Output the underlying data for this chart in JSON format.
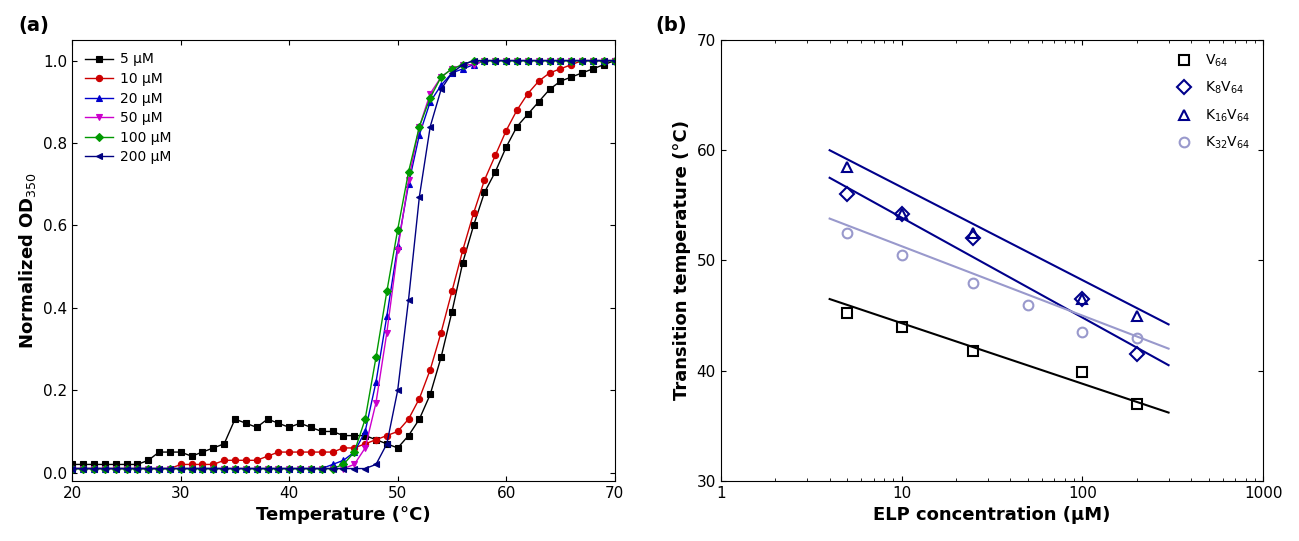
{
  "panel_a": {
    "xlabel": "Temperature (°C)",
    "ylabel": "Normalized OD$_{350}$",
    "xlim": [
      20,
      70
    ],
    "ylim": [
      -0.02,
      1.05
    ],
    "series": [
      {
        "label": "5 μM",
        "color": "black",
        "marker": "s",
        "x": [
          20,
          21,
          22,
          23,
          24,
          25,
          26,
          27,
          28,
          29,
          30,
          31,
          32,
          33,
          34,
          35,
          36,
          37,
          38,
          39,
          40,
          41,
          42,
          43,
          44,
          45,
          46,
          47,
          48,
          49,
          50,
          51,
          52,
          53,
          54,
          55,
          56,
          57,
          58,
          59,
          60,
          61,
          62,
          63,
          64,
          65,
          66,
          67,
          68,
          69,
          70
        ],
        "y": [
          0.02,
          0.02,
          0.02,
          0.02,
          0.02,
          0.02,
          0.02,
          0.03,
          0.05,
          0.05,
          0.05,
          0.04,
          0.05,
          0.06,
          0.07,
          0.13,
          0.12,
          0.11,
          0.13,
          0.12,
          0.11,
          0.12,
          0.11,
          0.1,
          0.1,
          0.09,
          0.09,
          0.09,
          0.08,
          0.07,
          0.06,
          0.09,
          0.13,
          0.19,
          0.28,
          0.39,
          0.51,
          0.6,
          0.68,
          0.73,
          0.79,
          0.84,
          0.87,
          0.9,
          0.93,
          0.95,
          0.96,
          0.97,
          0.98,
          0.99,
          1.0
        ]
      },
      {
        "label": "10 μM",
        "color": "#cc0000",
        "marker": "o",
        "x": [
          20,
          21,
          22,
          23,
          24,
          25,
          26,
          27,
          28,
          29,
          30,
          31,
          32,
          33,
          34,
          35,
          36,
          37,
          38,
          39,
          40,
          41,
          42,
          43,
          44,
          45,
          46,
          47,
          48,
          49,
          50,
          51,
          52,
          53,
          54,
          55,
          56,
          57,
          58,
          59,
          60,
          61,
          62,
          63,
          64,
          65,
          66,
          67,
          68,
          69,
          70
        ],
        "y": [
          0.01,
          0.01,
          0.01,
          0.01,
          0.01,
          0.01,
          0.01,
          0.01,
          0.01,
          0.01,
          0.02,
          0.02,
          0.02,
          0.02,
          0.03,
          0.03,
          0.03,
          0.03,
          0.04,
          0.05,
          0.05,
          0.05,
          0.05,
          0.05,
          0.05,
          0.06,
          0.06,
          0.07,
          0.08,
          0.09,
          0.1,
          0.13,
          0.18,
          0.25,
          0.34,
          0.44,
          0.54,
          0.63,
          0.71,
          0.77,
          0.83,
          0.88,
          0.92,
          0.95,
          0.97,
          0.98,
          0.99,
          1.0,
          1.0,
          1.0,
          1.0
        ]
      },
      {
        "label": "20 μM",
        "color": "#0000cc",
        "marker": "^",
        "x": [
          20,
          21,
          22,
          23,
          24,
          25,
          26,
          27,
          28,
          29,
          30,
          31,
          32,
          33,
          34,
          35,
          36,
          37,
          38,
          39,
          40,
          41,
          42,
          43,
          44,
          45,
          46,
          47,
          48,
          49,
          50,
          51,
          52,
          53,
          54,
          55,
          56,
          57,
          58,
          59,
          60,
          61,
          62,
          63,
          64,
          65,
          66,
          67,
          68,
          69,
          70
        ],
        "y": [
          0.01,
          0.01,
          0.01,
          0.01,
          0.01,
          0.01,
          0.01,
          0.01,
          0.01,
          0.01,
          0.01,
          0.01,
          0.01,
          0.01,
          0.01,
          0.01,
          0.01,
          0.01,
          0.01,
          0.01,
          0.01,
          0.01,
          0.01,
          0.01,
          0.02,
          0.03,
          0.05,
          0.1,
          0.22,
          0.38,
          0.55,
          0.7,
          0.82,
          0.9,
          0.94,
          0.97,
          0.98,
          0.99,
          1.0,
          1.0,
          1.0,
          1.0,
          1.0,
          1.0,
          1.0,
          1.0,
          1.0,
          1.0,
          1.0,
          1.0,
          1.0
        ]
      },
      {
        "label": "50 μM",
        "color": "#cc00cc",
        "marker": "v",
        "x": [
          20,
          21,
          22,
          23,
          24,
          25,
          26,
          27,
          28,
          29,
          30,
          31,
          32,
          33,
          34,
          35,
          36,
          37,
          38,
          39,
          40,
          41,
          42,
          43,
          44,
          45,
          46,
          47,
          48,
          49,
          50,
          51,
          52,
          53,
          54,
          55,
          56,
          57,
          58,
          59,
          60,
          61,
          62,
          63,
          64,
          65,
          66,
          67,
          68,
          69,
          70
        ],
        "y": [
          0.01,
          0.01,
          0.01,
          0.01,
          0.01,
          0.01,
          0.01,
          0.01,
          0.01,
          0.01,
          0.01,
          0.01,
          0.01,
          0.01,
          0.01,
          0.01,
          0.01,
          0.01,
          0.01,
          0.01,
          0.01,
          0.01,
          0.01,
          0.01,
          0.01,
          0.01,
          0.02,
          0.06,
          0.17,
          0.34,
          0.54,
          0.71,
          0.84,
          0.92,
          0.96,
          0.98,
          0.99,
          0.99,
          1.0,
          1.0,
          1.0,
          1.0,
          1.0,
          1.0,
          1.0,
          1.0,
          1.0,
          1.0,
          1.0,
          1.0,
          1.0
        ]
      },
      {
        "label": "100 μM",
        "color": "#009900",
        "marker": "D",
        "x": [
          20,
          21,
          22,
          23,
          24,
          25,
          26,
          27,
          28,
          29,
          30,
          31,
          32,
          33,
          34,
          35,
          36,
          37,
          38,
          39,
          40,
          41,
          42,
          43,
          44,
          45,
          46,
          47,
          48,
          49,
          50,
          51,
          52,
          53,
          54,
          55,
          56,
          57,
          58,
          59,
          60,
          61,
          62,
          63,
          64,
          65,
          66,
          67,
          68,
          69,
          70
        ],
        "y": [
          0.01,
          0.01,
          0.01,
          0.01,
          0.01,
          0.01,
          0.01,
          0.01,
          0.01,
          0.01,
          0.01,
          0.01,
          0.01,
          0.01,
          0.01,
          0.01,
          0.01,
          0.01,
          0.01,
          0.01,
          0.01,
          0.01,
          0.01,
          0.01,
          0.01,
          0.02,
          0.05,
          0.13,
          0.28,
          0.44,
          0.59,
          0.73,
          0.84,
          0.91,
          0.96,
          0.98,
          0.99,
          1.0,
          1.0,
          1.0,
          1.0,
          1.0,
          1.0,
          1.0,
          1.0,
          1.0,
          1.0,
          1.0,
          1.0,
          1.0,
          1.0
        ]
      },
      {
        "label": "200 μM",
        "color": "#000080",
        "marker": "<",
        "x": [
          20,
          21,
          22,
          23,
          24,
          25,
          26,
          27,
          28,
          29,
          30,
          31,
          32,
          33,
          34,
          35,
          36,
          37,
          38,
          39,
          40,
          41,
          42,
          43,
          44,
          45,
          46,
          47,
          48,
          49,
          50,
          51,
          52,
          53,
          54,
          55,
          56,
          57,
          58,
          59,
          60,
          61,
          62,
          63,
          64,
          65,
          66,
          67,
          68,
          69,
          70
        ],
        "y": [
          0.01,
          0.01,
          0.01,
          0.01,
          0.01,
          0.01,
          0.01,
          0.01,
          0.01,
          0.01,
          0.01,
          0.01,
          0.01,
          0.01,
          0.01,
          0.01,
          0.01,
          0.01,
          0.01,
          0.01,
          0.01,
          0.01,
          0.01,
          0.01,
          0.01,
          0.01,
          0.01,
          0.01,
          0.02,
          0.07,
          0.2,
          0.42,
          0.67,
          0.84,
          0.93,
          0.97,
          0.99,
          1.0,
          1.0,
          1.0,
          1.0,
          1.0,
          1.0,
          1.0,
          1.0,
          1.0,
          1.0,
          1.0,
          1.0,
          1.0,
          1.0
        ]
      }
    ]
  },
  "panel_b": {
    "xlabel": "ELP concentration (μM)",
    "ylabel": "Transition temperature (°C)",
    "xlim": [
      3,
      1000
    ],
    "ylim": [
      30,
      70
    ],
    "series": [
      {
        "label": "V$_{64}$",
        "color": "black",
        "marker": "s",
        "x": [
          5,
          10,
          25,
          100,
          200
        ],
        "y": [
          45.2,
          44.0,
          41.8,
          39.9,
          37.0
        ],
        "fit_x": [
          4,
          300
        ],
        "fit_y": [
          46.5,
          36.2
        ]
      },
      {
        "label": "K$_{8}$V$_{64}$",
        "color": "#00008B",
        "marker": "D",
        "x": [
          5,
          10,
          25,
          100,
          200
        ],
        "y": [
          56.0,
          54.2,
          52.0,
          46.5,
          41.5
        ],
        "fit_x": [
          4,
          300
        ],
        "fit_y": [
          57.5,
          40.5
        ]
      },
      {
        "label": "K$_{16}$V$_{64}$",
        "color": "#00008B",
        "marker": "^",
        "x": [
          5,
          10,
          25,
          100,
          200
        ],
        "y": [
          58.5,
          54.2,
          52.5,
          46.5,
          45.0
        ],
        "fit_x": [
          4,
          300
        ],
        "fit_y": [
          60.0,
          44.2
        ]
      },
      {
        "label": "K$_{32}$V$_{64}$",
        "color": "#9999cc",
        "marker": "o",
        "x": [
          5,
          10,
          25,
          50,
          100,
          200
        ],
        "y": [
          52.5,
          50.5,
          48.0,
          46.0,
          43.5,
          43.0
        ],
        "fit_x": [
          4,
          300
        ],
        "fit_y": [
          53.8,
          42.0
        ]
      }
    ]
  }
}
